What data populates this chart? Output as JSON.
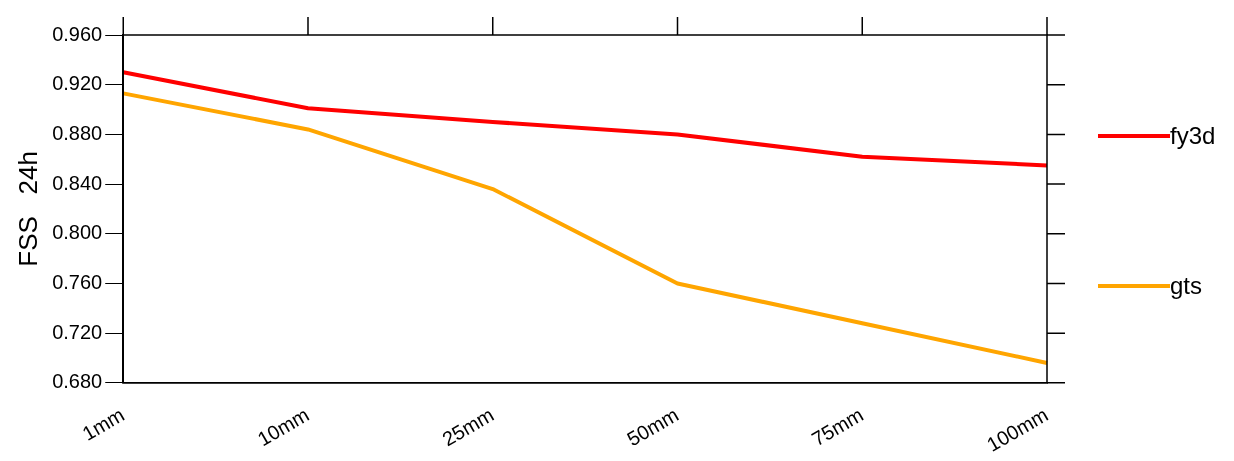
{
  "chart_data": {
    "type": "line",
    "ylabel": "FSS   24h",
    "categories": [
      "1mm",
      "10mm",
      "25mm",
      "50mm",
      "75mm",
      "100mm"
    ],
    "series": [
      {
        "name": "fy3d",
        "color": "#ff0000",
        "values": [
          0.93,
          0.901,
          0.89,
          0.88,
          0.862,
          0.855
        ]
      },
      {
        "name": "gts",
        "color": "#ffa500",
        "values": [
          0.913,
          0.884,
          0.836,
          0.76,
          0.728,
          0.696
        ]
      }
    ],
    "ylim": [
      0.68,
      0.96
    ],
    "yticks": [
      {
        "value": 0.68,
        "label": "0.680"
      },
      {
        "value": 0.72,
        "label": "0.720"
      },
      {
        "value": 0.76,
        "label": "0.760"
      },
      {
        "value": 0.8,
        "label": "0.800"
      },
      {
        "value": 0.84,
        "label": "0.840"
      },
      {
        "value": 0.88,
        "label": "0.880"
      },
      {
        "value": 0.92,
        "label": "0.920"
      },
      {
        "value": 0.96,
        "label": "0.960"
      }
    ],
    "grid": false,
    "legend": "right",
    "marker": "none",
    "line_style": "solid"
  }
}
